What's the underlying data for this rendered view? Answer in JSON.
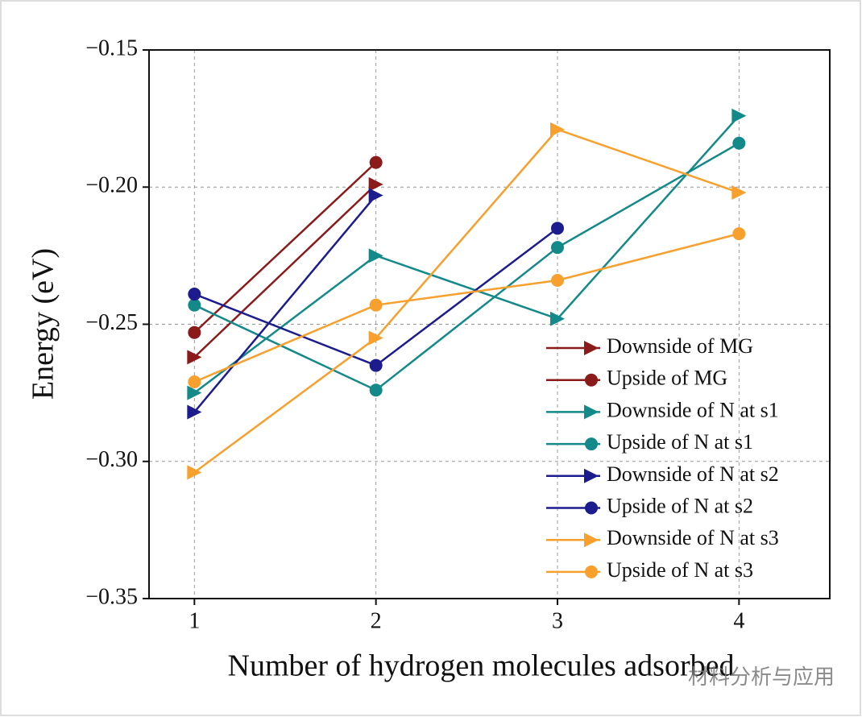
{
  "chart_data": {
    "type": "line",
    "x_label": "Number of hydrogen molecules adsorbed",
    "y_label": "Energy (eV)",
    "x": [
      1,
      2,
      3,
      4
    ],
    "xlim": [
      0.75,
      4.5
    ],
    "xticks": [
      1,
      2,
      3,
      4
    ],
    "ylim": [
      -0.35,
      -0.15
    ],
    "yticks": [
      {
        "value": -0.35,
        "label": "−0.35"
      },
      {
        "value": -0.3,
        "label": "−0.30"
      },
      {
        "value": -0.25,
        "label": "−0.25"
      },
      {
        "value": -0.2,
        "label": "−0.20"
      },
      {
        "value": -0.15,
        "label": "−0.15"
      }
    ],
    "grid": true,
    "legend": "lower right",
    "series": [
      {
        "name": "Downside of MG",
        "color": "#8b1a1a",
        "marker": "triangle",
        "values": [
          -0.262,
          -0.199,
          null,
          null
        ]
      },
      {
        "name": "Upside of MG",
        "color": "#8b1a1a",
        "marker": "circle",
        "values": [
          -0.253,
          -0.191,
          null,
          null
        ]
      },
      {
        "name": "Downside of N at s1",
        "color": "#14898a",
        "marker": "triangle",
        "values": [
          -0.275,
          -0.225,
          -0.248,
          -0.174
        ]
      },
      {
        "name": "Upside of N at s1",
        "color": "#14898a",
        "marker": "circle",
        "values": [
          -0.243,
          -0.274,
          -0.222,
          -0.184
        ]
      },
      {
        "name": "Downside of N at s2",
        "color": "#1c1c8e",
        "marker": "triangle",
        "values": [
          -0.282,
          -0.203,
          null,
          null
        ]
      },
      {
        "name": "Upside of N at s2",
        "color": "#1c1c8e",
        "marker": "circle",
        "values": [
          -0.239,
          -0.265,
          -0.215,
          null
        ]
      },
      {
        "name": "Downside of N at s3",
        "color": "#f7a02e",
        "marker": "triangle",
        "values": [
          -0.304,
          -0.255,
          -0.179,
          -0.202
        ]
      },
      {
        "name": "Upside of N at s3",
        "color": "#f7a02e",
        "marker": "circle",
        "values": [
          -0.271,
          -0.243,
          -0.234,
          -0.217
        ]
      }
    ],
    "watermark": "材料分析与应用"
  }
}
